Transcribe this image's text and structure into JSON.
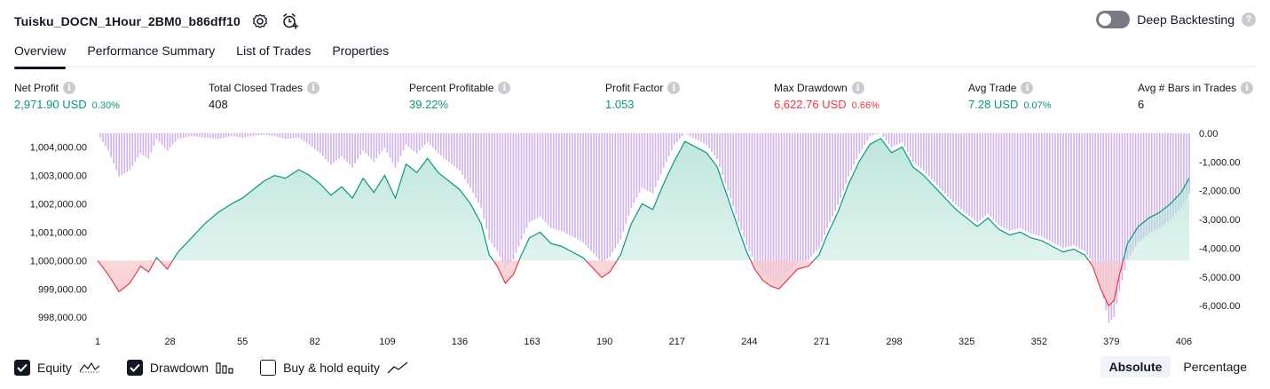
{
  "header": {
    "strategy_name": "Tuisku_DOCN_1Hour_2BM0_b86dff10",
    "settings_icon": "gear-icon",
    "alert_icon": "alarm-clock-plus-icon"
  },
  "deep_backtesting": {
    "label": "Deep Backtesting",
    "enabled": false
  },
  "tabs": [
    {
      "label": "Overview",
      "active": true
    },
    {
      "label": "Performance Summary",
      "active": false
    },
    {
      "label": "List of Trades",
      "active": false
    },
    {
      "label": "Properties",
      "active": false
    }
  ],
  "metrics": [
    {
      "label": "Net Profit",
      "value": "2,971.90 USD",
      "pct": "0.30%",
      "tone": "green"
    },
    {
      "label": "Total Closed Trades",
      "value": "408",
      "pct": "",
      "tone": "plain"
    },
    {
      "label": "Percent Profitable",
      "value": "39.22%",
      "pct": "",
      "tone": "green"
    },
    {
      "label": "Profit Factor",
      "value": "1.053",
      "pct": "",
      "tone": "green"
    },
    {
      "label": "Max Drawdown",
      "value": "6,622.76 USD",
      "pct": "0.66%",
      "tone": "red"
    },
    {
      "label": "Avg Trade",
      "value": "7.28 USD",
      "pct": "0.07%",
      "tone": "green"
    },
    {
      "label": "Avg # Bars in Trades",
      "value": "6",
      "pct": "",
      "tone": "plain"
    }
  ],
  "legend": [
    {
      "label": "Equity",
      "checked": true,
      "icon": "equity-line-icon"
    },
    {
      "label": "Drawdown",
      "checked": true,
      "icon": "drawdown-bars-icon"
    },
    {
      "label": "Buy & hold equity",
      "checked": false,
      "icon": "buy-hold-line-icon"
    }
  ],
  "mode": {
    "absolute": "Absolute",
    "percentage": "Percentage",
    "active": "absolute"
  },
  "colors": {
    "equity_line": "#089981",
    "equity_below": "#f23645",
    "drawdown_bars": "#d1b3f0",
    "equity_fill": "#b7e4d8",
    "text_green": "#089981",
    "text_red": "#f23645"
  },
  "chart_data": {
    "type": "area",
    "baseline": 1000000,
    "x_ticks": [
      1,
      28,
      55,
      82,
      109,
      136,
      163,
      190,
      217,
      244,
      271,
      298,
      325,
      352,
      379,
      406
    ],
    "y_left": {
      "ticks": [
        1004000,
        1003000,
        1002000,
        1001000,
        1000000,
        999000,
        998000
      ],
      "tick_labels": [
        "1,004,000.00",
        "1,003,000.00",
        "1,002,000.00",
        "1,001,000.00",
        "1,000,000.00",
        "999,000.00",
        "998,000.00"
      ],
      "range": [
        997600,
        1004550
      ]
    },
    "y_right": {
      "ticks": [
        0,
        -1000,
        -2000,
        -3000,
        -4000,
        -5000,
        -6000
      ],
      "tick_labels": [
        "0.00",
        "-1,000.00",
        "-2,000.00",
        "-3,000.00",
        "-4,000.00",
        "-5,000.00",
        "-6,000.00"
      ],
      "range": [
        -6800,
        0
      ]
    },
    "x_range": [
      1,
      408
    ],
    "series": [
      {
        "name": "Equity",
        "kind": "line",
        "points": [
          [
            1,
            1000000
          ],
          [
            5,
            999500
          ],
          [
            9,
            998900
          ],
          [
            13,
            999200
          ],
          [
            17,
            999800
          ],
          [
            20,
            999600
          ],
          [
            23,
            1000100
          ],
          [
            27,
            999700
          ],
          [
            31,
            1000300
          ],
          [
            36,
            1000800
          ],
          [
            41,
            1001300
          ],
          [
            46,
            1001700
          ],
          [
            51,
            1002000
          ],
          [
            55,
            1002200
          ],
          [
            59,
            1002500
          ],
          [
            63,
            1002800
          ],
          [
            67,
            1003000
          ],
          [
            71,
            1002900
          ],
          [
            76,
            1003200
          ],
          [
            80,
            1003000
          ],
          [
            84,
            1002700
          ],
          [
            88,
            1002300
          ],
          [
            92,
            1002600
          ],
          [
            96,
            1002200
          ],
          [
            100,
            1002900
          ],
          [
            104,
            1002400
          ],
          [
            108,
            1003000
          ],
          [
            112,
            1002200
          ],
          [
            116,
            1003400
          ],
          [
            120,
            1003100
          ],
          [
            124,
            1003600
          ],
          [
            128,
            1003100
          ],
          [
            132,
            1002800
          ],
          [
            136,
            1002500
          ],
          [
            140,
            1002000
          ],
          [
            144,
            1001300
          ],
          [
            147,
            1000200
          ],
          [
            150,
            999800
          ],
          [
            153,
            999200
          ],
          [
            156,
            999500
          ],
          [
            159,
            1000200
          ],
          [
            162,
            1000800
          ],
          [
            166,
            1001000
          ],
          [
            170,
            1000600
          ],
          [
            174,
            1000500
          ],
          [
            178,
            1000300
          ],
          [
            182,
            1000100
          ],
          [
            186,
            999700
          ],
          [
            189,
            999400
          ],
          [
            192,
            999600
          ],
          [
            196,
            1000200
          ],
          [
            200,
            1001300
          ],
          [
            204,
            1002000
          ],
          [
            208,
            1001800
          ],
          [
            212,
            1002700
          ],
          [
            216,
            1003500
          ],
          [
            220,
            1004200
          ],
          [
            224,
            1004000
          ],
          [
            228,
            1003800
          ],
          [
            232,
            1003300
          ],
          [
            236,
            1002200
          ],
          [
            240,
            1001100
          ],
          [
            243,
            1000300
          ],
          [
            246,
            999700
          ],
          [
            249,
            999300
          ],
          [
            252,
            999100
          ],
          [
            255,
            999000
          ],
          [
            258,
            999300
          ],
          [
            262,
            999700
          ],
          [
            266,
            999800
          ],
          [
            270,
            1000200
          ],
          [
            273,
            1000900
          ],
          [
            277,
            1001700
          ],
          [
            281,
            1002700
          ],
          [
            285,
            1003500
          ],
          [
            289,
            1004100
          ],
          [
            293,
            1004300
          ],
          [
            297,
            1003800
          ],
          [
            301,
            1004000
          ],
          [
            305,
            1003300
          ],
          [
            309,
            1003000
          ],
          [
            313,
            1002600
          ],
          [
            317,
            1002200
          ],
          [
            321,
            1001800
          ],
          [
            325,
            1001500
          ],
          [
            329,
            1001200
          ],
          [
            333,
            1001500
          ],
          [
            337,
            1001100
          ],
          [
            341,
            1000900
          ],
          [
            345,
            1001000
          ],
          [
            349,
            1000800
          ],
          [
            353,
            1000700
          ],
          [
            357,
            1000500
          ],
          [
            361,
            1000300
          ],
          [
            365,
            1000400
          ],
          [
            369,
            1000200
          ],
          [
            372,
            999800
          ],
          [
            375,
            999000
          ],
          [
            378,
            998400
          ],
          [
            380,
            998600
          ],
          [
            382,
            999500
          ],
          [
            385,
            1000600
          ],
          [
            389,
            1001200
          ],
          [
            393,
            1001500
          ],
          [
            397,
            1001700
          ],
          [
            401,
            1002000
          ],
          [
            405,
            1002400
          ],
          [
            408,
            1002900
          ]
        ]
      },
      {
        "name": "Drawdown",
        "kind": "bars",
        "points": [
          [
            1,
            0
          ],
          [
            5,
            -600
          ],
          [
            9,
            -1500
          ],
          [
            13,
            -1300
          ],
          [
            17,
            -700
          ],
          [
            20,
            -900
          ],
          [
            23,
            -200
          ],
          [
            27,
            -600
          ],
          [
            31,
            -200
          ],
          [
            36,
            -100
          ],
          [
            41,
            -150
          ],
          [
            46,
            -200
          ],
          [
            51,
            -100
          ],
          [
            55,
            -150
          ],
          [
            59,
            -100
          ],
          [
            63,
            -50
          ],
          [
            67,
            -100
          ],
          [
            71,
            -200
          ],
          [
            76,
            -150
          ],
          [
            80,
            -400
          ],
          [
            84,
            -700
          ],
          [
            88,
            -1100
          ],
          [
            92,
            -800
          ],
          [
            96,
            -1200
          ],
          [
            100,
            -600
          ],
          [
            104,
            -1000
          ],
          [
            108,
            -500
          ],
          [
            112,
            -1200
          ],
          [
            116,
            -400
          ],
          [
            120,
            -700
          ],
          [
            124,
            -300
          ],
          [
            128,
            -700
          ],
          [
            132,
            -1000
          ],
          [
            136,
            -1300
          ],
          [
            140,
            -1900
          ],
          [
            144,
            -2600
          ],
          [
            147,
            -3700
          ],
          [
            150,
            -4100
          ],
          [
            153,
            -4700
          ],
          [
            156,
            -4400
          ],
          [
            159,
            -3700
          ],
          [
            162,
            -3100
          ],
          [
            166,
            -2900
          ],
          [
            170,
            -3300
          ],
          [
            174,
            -3400
          ],
          [
            178,
            -3600
          ],
          [
            182,
            -3800
          ],
          [
            186,
            -4200
          ],
          [
            189,
            -4500
          ],
          [
            192,
            -4300
          ],
          [
            196,
            -3700
          ],
          [
            200,
            -2600
          ],
          [
            204,
            -1900
          ],
          [
            208,
            -2100
          ],
          [
            212,
            -1200
          ],
          [
            216,
            -400
          ],
          [
            220,
            0
          ],
          [
            224,
            -200
          ],
          [
            228,
            -400
          ],
          [
            232,
            -900
          ],
          [
            236,
            -2000
          ],
          [
            240,
            -3100
          ],
          [
            243,
            -3900
          ],
          [
            246,
            -4500
          ],
          [
            249,
            -4900
          ],
          [
            252,
            -5100
          ],
          [
            255,
            -5200
          ],
          [
            258,
            -4900
          ],
          [
            262,
            -4500
          ],
          [
            266,
            -4400
          ],
          [
            270,
            -4000
          ],
          [
            273,
            -3300
          ],
          [
            277,
            -2500
          ],
          [
            281,
            -1500
          ],
          [
            285,
            -700
          ],
          [
            289,
            -100
          ],
          [
            293,
            0
          ],
          [
            297,
            -500
          ],
          [
            301,
            -300
          ],
          [
            305,
            -1000
          ],
          [
            309,
            -1300
          ],
          [
            313,
            -1700
          ],
          [
            317,
            -2100
          ],
          [
            321,
            -2500
          ],
          [
            325,
            -2800
          ],
          [
            329,
            -3100
          ],
          [
            333,
            -2800
          ],
          [
            337,
            -3200
          ],
          [
            341,
            -3400
          ],
          [
            345,
            -3300
          ],
          [
            349,
            -3500
          ],
          [
            353,
            -3600
          ],
          [
            357,
            -3800
          ],
          [
            361,
            -4000
          ],
          [
            365,
            -3900
          ],
          [
            369,
            -4100
          ],
          [
            372,
            -4500
          ],
          [
            375,
            -5300
          ],
          [
            378,
            -6600
          ],
          [
            380,
            -6400
          ],
          [
            382,
            -5500
          ],
          [
            385,
            -4400
          ],
          [
            389,
            -3800
          ],
          [
            393,
            -3500
          ],
          [
            397,
            -3300
          ],
          [
            401,
            -3000
          ],
          [
            405,
            -2600
          ],
          [
            408,
            -2100
          ]
        ]
      }
    ]
  }
}
